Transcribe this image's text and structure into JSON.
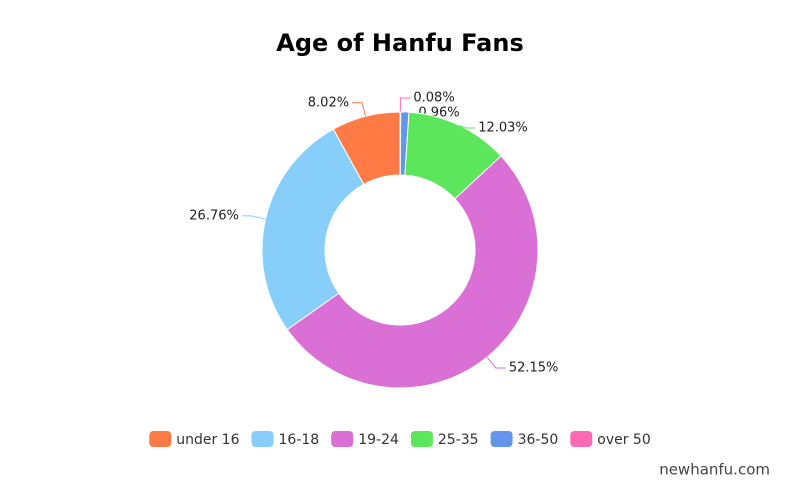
{
  "chart_data": {
    "type": "pie",
    "title": "Age of Hanfu Fans",
    "categories": [
      "under 16",
      "16-18",
      "19-24",
      "25-35",
      "36-50",
      "over 50"
    ],
    "values": [
      8.02,
      26.76,
      52.15,
      12.03,
      0.96,
      0.08
    ],
    "value_labels": [
      "8.02%",
      "26.76%",
      "52.15%",
      "12.03%",
      "0.96%",
      "0.08%"
    ],
    "colors": [
      "#ff7a45",
      "#87cefa",
      "#da70d6",
      "#5ce65c",
      "#6495ed",
      "#ff69b4"
    ],
    "legend": "bottom"
  },
  "watermark": "newhanfu.com"
}
